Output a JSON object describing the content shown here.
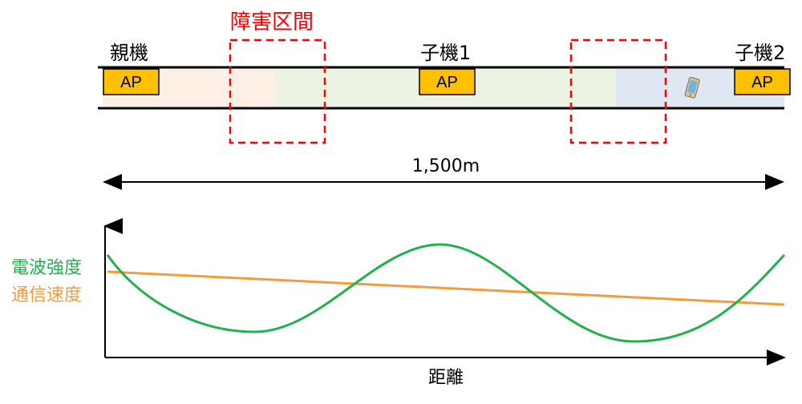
{
  "labels": {
    "parent": "親機",
    "child1": "子機1",
    "child2": "子機2",
    "obstacle": "障害区間",
    "distance_total": "1,500m",
    "ap": "AP",
    "signal_strength": "電波強度",
    "speed": "通信速度",
    "x_axis": "距離"
  },
  "colors": {
    "obstacle": "#ff0000",
    "signal": "#22b14c",
    "speed": "#f39c3d",
    "ap_fill": "#ffc000",
    "zone_parent": "#fde9d9",
    "zone_child1": "#eaf1dd",
    "zone_child2": "#dbe5f1"
  },
  "icons": [
    "smartphone-icon"
  ]
}
